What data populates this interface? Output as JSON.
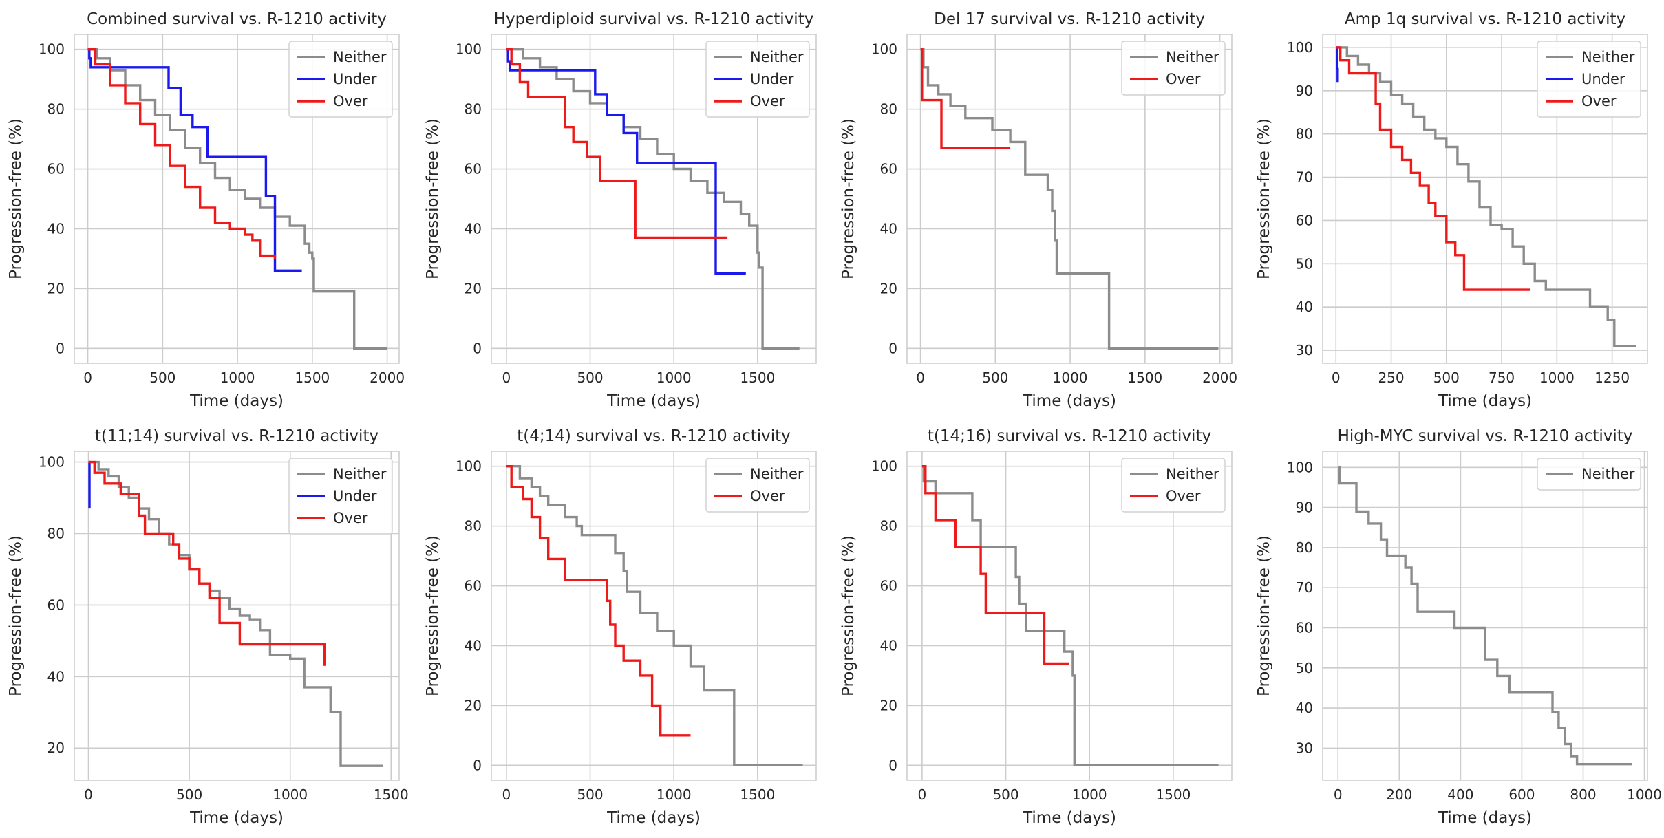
{
  "figure": {
    "series_colors": {
      "Neither": "#8c8c8c",
      "Under": "#1a1aee",
      "Over": "#ee1a1a"
    }
  },
  "chart_data": [
    {
      "type": "line",
      "title": "Combined survival vs. R-1210 activity",
      "xlabel": "Time (days)",
      "ylabel": "Progression-free (%)",
      "xlim": [
        -90,
        2080
      ],
      "ylim": [
        -5,
        105
      ],
      "xticks": [
        0,
        500,
        1000,
        1500,
        2000
      ],
      "yticks": [
        0,
        20,
        40,
        60,
        80,
        100
      ],
      "grid": true,
      "legend": "top-right",
      "series": [
        {
          "name": "Neither",
          "x": [
            0,
            60,
            150,
            250,
            350,
            450,
            550,
            650,
            750,
            850,
            950,
            1050,
            1150,
            1250,
            1350,
            1450,
            1480,
            1500,
            1510,
            1770,
            1780,
            2000
          ],
          "y": [
            100,
            97,
            93,
            88,
            83,
            78,
            73,
            67,
            62,
            57,
            53,
            50,
            47,
            44,
            41,
            35,
            32,
            30,
            19,
            19,
            0,
            0
          ]
        },
        {
          "name": "Under",
          "x": [
            0,
            10,
            20,
            540,
            540,
            620,
            700,
            800,
            1190,
            1250,
            1430
          ],
          "y": [
            100,
            97,
            94,
            94,
            87,
            78,
            74,
            64,
            51,
            26,
            26
          ]
        },
        {
          "name": "Over",
          "x": [
            0,
            50,
            150,
            250,
            350,
            450,
            550,
            650,
            750,
            850,
            950,
            1050,
            1100,
            1150,
            1250
          ],
          "y": [
            100,
            95,
            88,
            82,
            75,
            68,
            61,
            54,
            47,
            42,
            40,
            38,
            36,
            31,
            30
          ]
        }
      ]
    },
    {
      "type": "line",
      "title": "Hyperdiploid survival vs. R-1210 activity",
      "xlabel": "Time (days)",
      "ylabel": "Progression-free (%)",
      "xlim": [
        -90,
        1850
      ],
      "ylim": [
        -5,
        105
      ],
      "xticks": [
        0,
        500,
        1000,
        1500
      ],
      "yticks": [
        0,
        20,
        40,
        60,
        80,
        100
      ],
      "grid": true,
      "legend": "top-right",
      "series": [
        {
          "name": "Neither",
          "x": [
            0,
            100,
            200,
            300,
            400,
            500,
            600,
            700,
            800,
            900,
            1000,
            1100,
            1200,
            1300,
            1400,
            1450,
            1500,
            1510,
            1530,
            1750
          ],
          "y": [
            100,
            97,
            94,
            90,
            86,
            82,
            78,
            74,
            70,
            65,
            60,
            56,
            52,
            49,
            45,
            41,
            32,
            27,
            0,
            0
          ]
        },
        {
          "name": "Under",
          "x": [
            0,
            10,
            20,
            530,
            530,
            600,
            700,
            780,
            1180,
            1250,
            1430
          ],
          "y": [
            100,
            96,
            93,
            93,
            85,
            78,
            72,
            62,
            62,
            25,
            25
          ]
        },
        {
          "name": "Over",
          "x": [
            0,
            30,
            80,
            130,
            250,
            350,
            400,
            480,
            560,
            770,
            1320
          ],
          "y": [
            100,
            95,
            89,
            84,
            84,
            74,
            69,
            64,
            56,
            37,
            37
          ]
        }
      ]
    },
    {
      "type": "line",
      "title": "Del 17 survival vs. R-1210 activity",
      "xlabel": "Time (days)",
      "ylabel": "Progression-free (%)",
      "xlim": [
        -90,
        2080
      ],
      "ylim": [
        -5,
        105
      ],
      "xticks": [
        0,
        500,
        1000,
        1500,
        2000
      ],
      "yticks": [
        0,
        20,
        40,
        60,
        80,
        100
      ],
      "grid": true,
      "legend": "top-right",
      "series": [
        {
          "name": "Neither",
          "x": [
            0,
            20,
            50,
            120,
            200,
            300,
            480,
            600,
            700,
            850,
            880,
            900,
            910,
            1250,
            1260,
            1990
          ],
          "y": [
            100,
            94,
            88,
            85,
            81,
            77,
            73,
            69,
            58,
            53,
            46,
            36,
            25,
            25,
            0,
            0
          ]
        },
        {
          "name": "Over",
          "x": [
            0,
            10,
            140,
            600
          ],
          "y": [
            100,
            83,
            67,
            67
          ]
        }
      ]
    },
    {
      "type": "line",
      "title": "Amp 1q survival vs. R-1210 activity",
      "xlabel": "Time (days)",
      "ylabel": "Progression-free (%)",
      "xlim": [
        -60,
        1410
      ],
      "ylim": [
        27,
        103
      ],
      "xticks": [
        0,
        250,
        500,
        750,
        1000,
        1250
      ],
      "yticks": [
        30,
        40,
        50,
        60,
        70,
        80,
        90,
        100
      ],
      "grid": true,
      "legend": "top-right",
      "series": [
        {
          "name": "Neither",
          "x": [
            0,
            50,
            100,
            150,
            200,
            250,
            300,
            350,
            400,
            450,
            500,
            550,
            600,
            650,
            700,
            750,
            800,
            850,
            900,
            950,
            1000,
            1100,
            1150,
            1200,
            1230,
            1260,
            1360
          ],
          "y": [
            100,
            98,
            96,
            94,
            92,
            89,
            87,
            84,
            81,
            79,
            77,
            73,
            69,
            63,
            59,
            58,
            54,
            50,
            46,
            44,
            44,
            44,
            40,
            40,
            37,
            31,
            31
          ]
        },
        {
          "name": "Under",
          "x": [
            0,
            5,
            8
          ],
          "y": [
            100,
            95,
            92
          ]
        },
        {
          "name": "Over",
          "x": [
            0,
            20,
            60,
            160,
            180,
            200,
            250,
            300,
            340,
            380,
            420,
            450,
            500,
            540,
            580,
            880
          ],
          "y": [
            100,
            97,
            94,
            94,
            87,
            81,
            77,
            74,
            71,
            68,
            64,
            61,
            55,
            52,
            44,
            44
          ]
        }
      ]
    },
    {
      "type": "line",
      "title": "t(11;14) survival vs. R-1210 activity",
      "xlabel": "Time (days)",
      "ylabel": "Progression-free (%)",
      "xlim": [
        -70,
        1540
      ],
      "ylim": [
        11,
        103
      ],
      "xticks": [
        0,
        500,
        1000,
        1500
      ],
      "yticks": [
        20,
        40,
        60,
        80,
        100
      ],
      "grid": true,
      "legend": "top-right",
      "series": [
        {
          "name": "Neither",
          "x": [
            0,
            50,
            100,
            150,
            200,
            250,
            300,
            350,
            400,
            450,
            500,
            550,
            600,
            650,
            700,
            750,
            800,
            850,
            900,
            1000,
            1070,
            1080,
            1200,
            1250,
            1460
          ],
          "y": [
            100,
            98,
            96,
            93,
            90,
            87,
            84,
            80,
            77,
            74,
            70,
            66,
            64,
            62,
            59,
            57,
            56,
            53,
            46,
            45,
            37,
            37,
            30,
            15,
            15
          ]
        },
        {
          "name": "Under",
          "x": [
            0,
            5
          ],
          "y": [
            100,
            87
          ]
        },
        {
          "name": "Over",
          "x": [
            0,
            30,
            80,
            160,
            250,
            280,
            350,
            420,
            450,
            500,
            550,
            600,
            650,
            750,
            1150,
            1170
          ],
          "y": [
            100,
            97,
            94,
            91,
            85,
            80,
            80,
            77,
            73,
            70,
            66,
            62,
            55,
            49,
            49,
            43
          ]
        }
      ]
    },
    {
      "type": "line",
      "title": "t(4;14) survival vs. R-1210 activity",
      "xlabel": "Time (days)",
      "ylabel": "Progression-free (%)",
      "xlim": [
        -90,
        1850
      ],
      "ylim": [
        -5,
        105
      ],
      "xticks": [
        0,
        500,
        1000,
        1500
      ],
      "yticks": [
        0,
        20,
        40,
        60,
        80,
        100
      ],
      "grid": true,
      "legend": "top-right",
      "series": [
        {
          "name": "Neither",
          "x": [
            0,
            80,
            150,
            200,
            250,
            350,
            420,
            450,
            600,
            650,
            700,
            720,
            800,
            900,
            1000,
            1100,
            1180,
            1350,
            1360,
            1770
          ],
          "y": [
            100,
            96,
            93,
            90,
            87,
            83,
            80,
            77,
            77,
            71,
            65,
            58,
            51,
            45,
            40,
            33,
            25,
            25,
            0,
            0
          ]
        },
        {
          "name": "Over",
          "x": [
            0,
            30,
            100,
            150,
            200,
            250,
            350,
            400,
            600,
            620,
            650,
            700,
            800,
            870,
            920,
            1100
          ],
          "y": [
            100,
            93,
            89,
            83,
            76,
            69,
            62,
            62,
            55,
            47,
            40,
            35,
            30,
            20,
            10,
            10
          ]
        }
      ]
    },
    {
      "type": "line",
      "title": "t(14;16) survival vs. R-1210 activity",
      "xlabel": "Time (days)",
      "ylabel": "Progression-free (%)",
      "xlim": [
        -90,
        1850
      ],
      "ylim": [
        -5,
        105
      ],
      "xticks": [
        0,
        500,
        1000,
        1500
      ],
      "yticks": [
        0,
        20,
        40,
        60,
        80,
        100
      ],
      "grid": true,
      "legend": "top-right",
      "series": [
        {
          "name": "Neither",
          "x": [
            0,
            10,
            80,
            250,
            300,
            350,
            550,
            560,
            580,
            620,
            850,
            900,
            910,
            1770
          ],
          "y": [
            100,
            95,
            91,
            91,
            82,
            73,
            73,
            63,
            54,
            45,
            38,
            30,
            0,
            0
          ]
        },
        {
          "name": "Over",
          "x": [
            0,
            20,
            80,
            200,
            350,
            380,
            730,
            730,
            880
          ],
          "y": [
            100,
            91,
            82,
            73,
            64,
            51,
            51,
            34,
            34
          ]
        }
      ]
    },
    {
      "type": "line",
      "title": "High-MYC survival vs. R-1210 activity",
      "xlabel": "Time (days)",
      "ylabel": "Progression-free (%)",
      "xlim": [
        -50,
        1010
      ],
      "ylim": [
        22,
        104
      ],
      "xticks": [
        0,
        200,
        400,
        600,
        800,
        1000
      ],
      "yticks": [
        30,
        40,
        50,
        60,
        70,
        80,
        90,
        100
      ],
      "grid": true,
      "legend": "top-right",
      "series": [
        {
          "name": "Neither",
          "x": [
            0,
            5,
            60,
            100,
            140,
            160,
            220,
            240,
            260,
            380,
            480,
            520,
            560,
            700,
            720,
            740,
            760,
            780,
            960
          ],
          "y": [
            100,
            96,
            89,
            86,
            82,
            78,
            75,
            71,
            64,
            60,
            52,
            48,
            44,
            39,
            35,
            31,
            28,
            26,
            26
          ]
        }
      ]
    }
  ]
}
